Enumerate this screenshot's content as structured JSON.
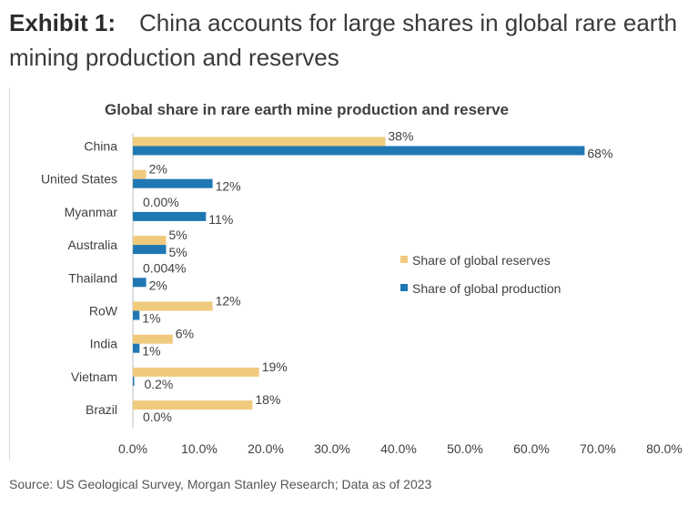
{
  "exhibit": {
    "label": "Exhibit 1:",
    "title": "China accounts for large shares in global rare earth mining production and reserves"
  },
  "source": "Source: US Geological Survey, Morgan Stanley Research; Data as of 2023",
  "colors": {
    "reserves": "#F0CB7E",
    "production": "#1F78B4",
    "text": "#333333"
  },
  "chart_data": {
    "type": "bar",
    "orientation": "horizontal",
    "title": "Global share in rare earth mine production and reserve",
    "categories": [
      "China",
      "United States",
      "Myanmar",
      "Australia",
      "Thailand",
      "RoW",
      "India",
      "Vietnam",
      "Brazil"
    ],
    "series": [
      {
        "name": "Share of global reserves",
        "values": [
          38,
          2,
          0,
          5,
          0.004,
          12,
          6,
          19,
          18
        ],
        "labels": [
          "38%",
          "2%",
          "0.00%",
          "5%",
          "0.004%",
          "12%",
          "6%",
          "19%",
          "18%"
        ]
      },
      {
        "name": "Share of global production",
        "values": [
          68,
          12,
          11,
          5,
          2,
          1,
          1,
          0.2,
          0
        ],
        "labels": [
          "68%",
          "12%",
          "11%",
          "5%",
          "2%",
          "1%",
          "1%",
          "0.2%",
          "0.0%"
        ]
      }
    ],
    "xlim": [
      0,
      80
    ],
    "xticks": [
      "0.0%",
      "10.0%",
      "20.0%",
      "30.0%",
      "40.0%",
      "50.0%",
      "60.0%",
      "70.0%",
      "80.0%"
    ],
    "legend_position": "right",
    "grid": false
  }
}
